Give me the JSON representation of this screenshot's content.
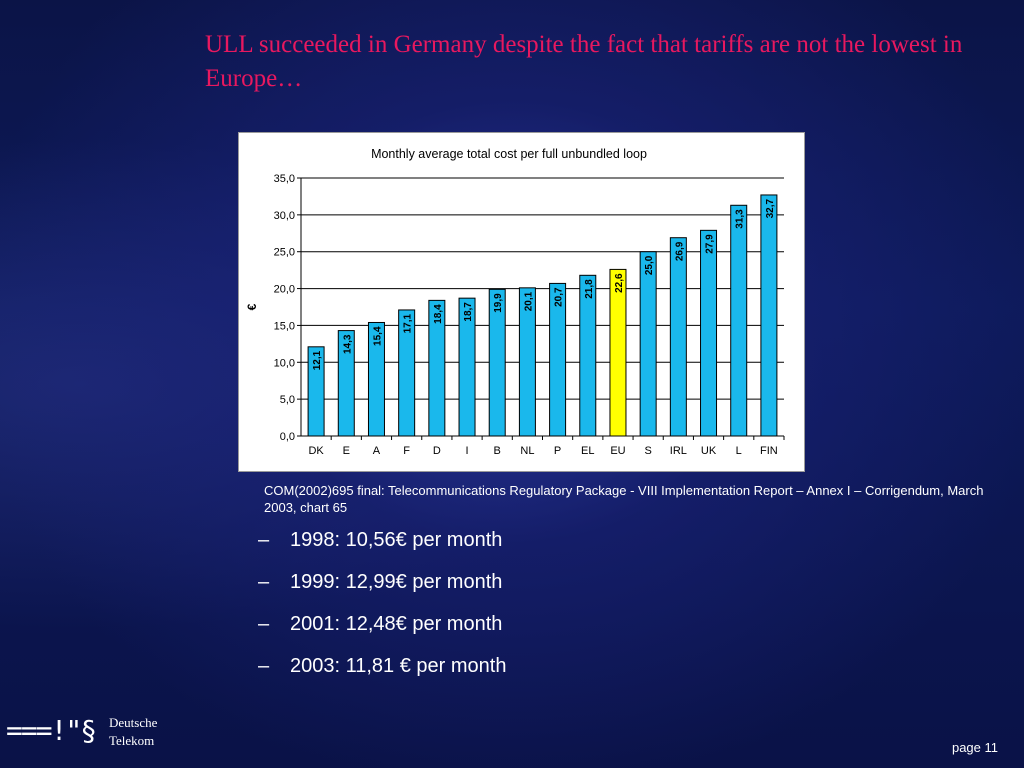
{
  "slide": {
    "title": "ULL succeeded in Germany despite the fact that tariffs are not the lowest in Europe…",
    "source_note": "COM(2002)695 final: Telecommunications Regulatory Package - VIII Implementation Report – Annex I – Corrigendum, March 2003, chart 65",
    "bullets": [
      {
        "dash": "–",
        "text": "1998: 10,56€ per month"
      },
      {
        "dash": "–",
        "text": "1999: 12,99€ per month"
      },
      {
        "dash": "–",
        "text": "2001: 12,48€ per month"
      },
      {
        "dash": "–",
        "text": "2003: 11,81 € per month"
      }
    ],
    "logo_mark": "===!\"§",
    "logo_line1": "Deutsche",
    "logo_line2": "Telekom",
    "page_label": "page 11"
  },
  "chart_data": {
    "type": "bar",
    "title": "Monthly average total cost per full unbundled loop",
    "xlabel": "",
    "ylabel": "€",
    "categories": [
      "DK",
      "E",
      "A",
      "F",
      "D",
      "I",
      "B",
      "NL",
      "P",
      "EL",
      "EU",
      "S",
      "IRL",
      "UK",
      "L",
      "FIN"
    ],
    "values": [
      12.1,
      14.3,
      15.4,
      17.1,
      18.4,
      18.7,
      19.9,
      20.1,
      20.7,
      21.8,
      22.6,
      25.0,
      26.9,
      27.9,
      31.3,
      32.7
    ],
    "value_labels": [
      "12,1",
      "14,3",
      "15,4",
      "17,1",
      "18,4",
      "18,7",
      "19,9",
      "20,1",
      "20,7",
      "21,8",
      "22,6",
      "25,0",
      "26,9",
      "27,9",
      "31,3",
      "32,7"
    ],
    "ylim": [
      0,
      35
    ],
    "yticks": [
      0,
      5,
      10,
      15,
      20,
      25,
      30,
      35
    ],
    "ytick_labels": [
      "0,0",
      "5,0",
      "10,0",
      "15,0",
      "20,0",
      "25,0",
      "30,0",
      "35,0"
    ],
    "grid": true,
    "legend": "none",
    "colors": {
      "bar": "#1ab8ec",
      "highlight": "#ffff00",
      "highlight_category": "EU",
      "outline": "#000000",
      "grid": "#000000"
    }
  }
}
